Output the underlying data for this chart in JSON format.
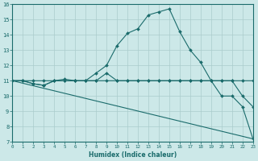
{
  "xlabel": "Humidex (Indice chaleur)",
  "xlim": [
    0,
    23
  ],
  "ylim": [
    7,
    16
  ],
  "xticks": [
    0,
    1,
    2,
    3,
    4,
    5,
    6,
    7,
    8,
    9,
    10,
    11,
    12,
    13,
    14,
    15,
    16,
    17,
    18,
    19,
    20,
    21,
    22,
    23
  ],
  "yticks": [
    7,
    8,
    9,
    10,
    11,
    12,
    13,
    14,
    15,
    16
  ],
  "bg_color": "#cce8e8",
  "grid_color": "#aacccc",
  "line_color": "#1a6b6b",
  "lines": [
    {
      "x": [
        0,
        1,
        2,
        3,
        4,
        5,
        6,
        7,
        8,
        9,
        10,
        11,
        12,
        13,
        14,
        15,
        16,
        17,
        18,
        19,
        20,
        21,
        22,
        23
      ],
      "y": [
        11,
        11,
        11,
        11,
        11,
        11,
        11,
        11,
        11.5,
        12,
        13.3,
        14.1,
        14.4,
        15.3,
        15.5,
        15.7,
        14.2,
        13.0,
        12.2,
        11,
        11,
        11,
        10,
        9.3
      ],
      "marker": "D",
      "markersize": 2.0,
      "lw": 0.8
    },
    {
      "x": [
        0,
        1,
        2,
        3,
        4,
        5,
        6,
        7,
        8,
        9,
        10,
        11,
        12,
        13,
        14,
        15,
        16,
        17,
        18,
        19,
        20,
        21,
        22,
        23
      ],
      "y": [
        11,
        11,
        10.8,
        10.7,
        11,
        11.1,
        11,
        11,
        11,
        11.5,
        11,
        11,
        11,
        11,
        11,
        11,
        11,
        11,
        11,
        11,
        10,
        10,
        9.3,
        7.2
      ],
      "marker": "D",
      "markersize": 2.0,
      "lw": 0.8
    },
    {
      "x": [
        0,
        1,
        2,
        3,
        4,
        5,
        6,
        7,
        8,
        9,
        10,
        11,
        12,
        13,
        14,
        15,
        16,
        17,
        18,
        19,
        20,
        21,
        22,
        23
      ],
      "y": [
        11,
        11,
        10.8,
        10.7,
        11,
        11,
        11,
        11,
        11,
        11,
        11,
        11,
        11,
        11,
        11,
        11,
        11,
        11,
        11,
        11,
        11,
        11,
        11,
        11
      ],
      "marker": "D",
      "markersize": 2.0,
      "lw": 0.8
    },
    {
      "x": [
        0,
        23
      ],
      "y": [
        11,
        7.2
      ],
      "marker": null,
      "markersize": 0,
      "lw": 0.8
    }
  ]
}
